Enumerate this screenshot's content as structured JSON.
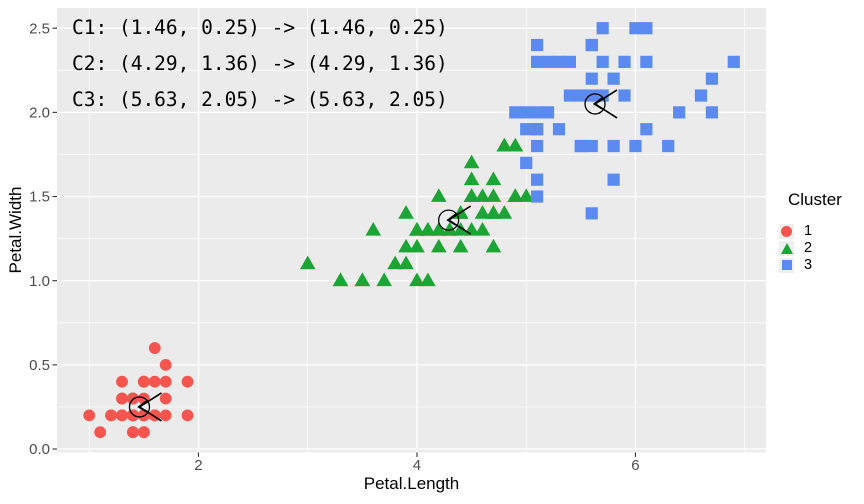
{
  "chart": {
    "background": "#FFFFFF",
    "panel_background": "#EBEBEB",
    "grid_color": "#FFFFFF",
    "axis_text_color": "#4D4D4D",
    "tick_color": "#333333",
    "center_marker_color": "#000000"
  },
  "annotations": {
    "lines": [
      "C1: (1.46, 0.25) -> (1.46, 0.25)",
      "C2: (4.29, 1.36) -> (4.29, 1.36)",
      "C3: (5.63, 2.05) -> (5.63, 2.05)"
    ]
  },
  "legend": {
    "title": "Cluster",
    "items": [
      {
        "label": "1",
        "shape": "circle",
        "color": "#F4564F"
      },
      {
        "label": "2",
        "shape": "triangle",
        "color": "#1CA434"
      },
      {
        "label": "3",
        "shape": "square",
        "color": "#5B8BF0"
      }
    ]
  },
  "chart_data": {
    "type": "scatter",
    "title": "",
    "xlabel": "Petal.Length",
    "ylabel": "Petal.Width",
    "xlim": [
      0.705,
      7.195
    ],
    "ylim": [
      -0.02,
      2.62
    ],
    "x_major_ticks": [
      "2",
      "4",
      "6"
    ],
    "x_minor_ticks": [
      1,
      3,
      5,
      7
    ],
    "y_major_ticks": [
      "0.0",
      "0.5",
      "1.0",
      "1.5",
      "2.0",
      "2.5"
    ],
    "y_minor_ticks": [
      0.25,
      0.75,
      1.25,
      1.75,
      2.25
    ],
    "grid": "on",
    "legend_position": "right",
    "series": [
      {
        "name": "1",
        "shape": "circle",
        "color": "#F4564F",
        "points": [
          [
            1.4,
            0.2
          ],
          [
            1.4,
            0.2
          ],
          [
            1.3,
            0.2
          ],
          [
            1.5,
            0.2
          ],
          [
            1.4,
            0.2
          ],
          [
            1.7,
            0.4
          ],
          [
            1.4,
            0.3
          ],
          [
            1.5,
            0.2
          ],
          [
            1.4,
            0.2
          ],
          [
            1.5,
            0.1
          ],
          [
            1.5,
            0.2
          ],
          [
            1.6,
            0.2
          ],
          [
            1.4,
            0.1
          ],
          [
            1.1,
            0.1
          ],
          [
            1.2,
            0.2
          ],
          [
            1.5,
            0.4
          ],
          [
            1.3,
            0.4
          ],
          [
            1.4,
            0.3
          ],
          [
            1.7,
            0.3
          ],
          [
            1.5,
            0.3
          ],
          [
            1.7,
            0.2
          ],
          [
            1.5,
            0.4
          ],
          [
            1.0,
            0.2
          ],
          [
            1.7,
            0.5
          ],
          [
            1.9,
            0.2
          ],
          [
            1.6,
            0.2
          ],
          [
            1.6,
            0.4
          ],
          [
            1.5,
            0.2
          ],
          [
            1.4,
            0.2
          ],
          [
            1.6,
            0.2
          ],
          [
            1.6,
            0.2
          ],
          [
            1.5,
            0.4
          ],
          [
            1.5,
            0.1
          ],
          [
            1.4,
            0.2
          ],
          [
            1.5,
            0.2
          ],
          [
            1.2,
            0.2
          ],
          [
            1.3,
            0.2
          ],
          [
            1.4,
            0.1
          ],
          [
            1.3,
            0.2
          ],
          [
            1.5,
            0.2
          ],
          [
            1.3,
            0.3
          ],
          [
            1.3,
            0.3
          ],
          [
            1.3,
            0.2
          ],
          [
            1.6,
            0.6
          ],
          [
            1.9,
            0.4
          ],
          [
            1.4,
            0.3
          ],
          [
            1.6,
            0.2
          ],
          [
            1.4,
            0.2
          ],
          [
            1.5,
            0.2
          ],
          [
            1.4,
            0.2
          ]
        ]
      },
      {
        "name": "2",
        "shape": "triangle",
        "color": "#1CA434",
        "points": [
          [
            4.7,
            1.4
          ],
          [
            4.5,
            1.5
          ],
          [
            4.9,
            1.5
          ],
          [
            4.0,
            1.3
          ],
          [
            4.6,
            1.5
          ],
          [
            4.5,
            1.3
          ],
          [
            4.7,
            1.6
          ],
          [
            3.3,
            1.0
          ],
          [
            4.6,
            1.3
          ],
          [
            3.9,
            1.4
          ],
          [
            3.5,
            1.0
          ],
          [
            4.2,
            1.5
          ],
          [
            4.0,
            1.0
          ],
          [
            4.7,
            1.4
          ],
          [
            3.6,
            1.3
          ],
          [
            4.4,
            1.4
          ],
          [
            4.5,
            1.5
          ],
          [
            4.1,
            1.0
          ],
          [
            4.5,
            1.5
          ],
          [
            3.9,
            1.1
          ],
          [
            4.8,
            1.8
          ],
          [
            4.0,
            1.3
          ],
          [
            4.9,
            1.5
          ],
          [
            4.7,
            1.2
          ],
          [
            4.3,
            1.3
          ],
          [
            4.4,
            1.4
          ],
          [
            4.8,
            1.4
          ],
          [
            4.5,
            1.5
          ],
          [
            3.5,
            1.0
          ],
          [
            3.8,
            1.1
          ],
          [
            3.7,
            1.0
          ],
          [
            3.9,
            1.2
          ],
          [
            4.5,
            1.5
          ],
          [
            4.5,
            1.6
          ],
          [
            4.7,
            1.5
          ],
          [
            4.4,
            1.3
          ],
          [
            4.1,
            1.3
          ],
          [
            4.0,
            1.3
          ],
          [
            4.4,
            1.2
          ],
          [
            4.6,
            1.4
          ],
          [
            4.0,
            1.2
          ],
          [
            3.3,
            1.0
          ],
          [
            4.2,
            1.3
          ],
          [
            4.2,
            1.2
          ],
          [
            4.2,
            1.3
          ],
          [
            4.3,
            1.3
          ],
          [
            3.0,
            1.1
          ],
          [
            4.1,
            1.3
          ],
          [
            4.5,
            1.7
          ],
          [
            5.0,
            1.5
          ],
          [
            4.9,
            1.8
          ],
          [
            4.8,
            1.8
          ],
          [
            4.9,
            1.8
          ],
          [
            4.8,
            1.8
          ]
        ]
      },
      {
        "name": "3",
        "shape": "square",
        "color": "#5B8BF0",
        "points": [
          [
            5.0,
            1.7
          ],
          [
            5.1,
            1.6
          ],
          [
            6.0,
            2.5
          ],
          [
            5.1,
            1.9
          ],
          [
            5.9,
            2.1
          ],
          [
            5.6,
            1.8
          ],
          [
            5.8,
            2.2
          ],
          [
            6.6,
            2.1
          ],
          [
            6.3,
            1.8
          ],
          [
            5.8,
            1.8
          ],
          [
            6.1,
            2.5
          ],
          [
            5.1,
            2.0
          ],
          [
            5.3,
            1.9
          ],
          [
            5.5,
            2.1
          ],
          [
            5.0,
            2.0
          ],
          [
            5.1,
            2.4
          ],
          [
            5.3,
            2.3
          ],
          [
            5.5,
            1.8
          ],
          [
            6.7,
            2.2
          ],
          [
            6.9,
            2.3
          ],
          [
            5.7,
            2.3
          ],
          [
            4.9,
            2.0
          ],
          [
            6.7,
            2.0
          ],
          [
            5.7,
            2.1
          ],
          [
            6.0,
            1.8
          ],
          [
            5.6,
            2.1
          ],
          [
            5.8,
            1.6
          ],
          [
            6.1,
            1.9
          ],
          [
            6.4,
            2.0
          ],
          [
            5.6,
            2.2
          ],
          [
            5.1,
            1.5
          ],
          [
            5.6,
            1.4
          ],
          [
            6.1,
            2.3
          ],
          [
            5.6,
            2.4
          ],
          [
            5.5,
            1.8
          ],
          [
            5.4,
            2.1
          ],
          [
            5.6,
            2.4
          ],
          [
            5.1,
            2.3
          ],
          [
            5.1,
            1.9
          ],
          [
            5.9,
            2.3
          ],
          [
            5.7,
            2.5
          ],
          [
            5.2,
            2.3
          ],
          [
            5.0,
            1.9
          ],
          [
            5.2,
            2.0
          ],
          [
            5.4,
            2.3
          ],
          [
            5.1,
            1.8
          ]
        ]
      }
    ],
    "centers": [
      {
        "label": "C1",
        "from": [
          1.46,
          0.25
        ],
        "to": [
          1.46,
          0.25
        ]
      },
      {
        "label": "C2",
        "from": [
          4.29,
          1.36
        ],
        "to": [
          4.29,
          1.36
        ]
      },
      {
        "label": "C3",
        "from": [
          5.63,
          2.05
        ],
        "to": [
          5.63,
          2.05
        ]
      }
    ]
  }
}
